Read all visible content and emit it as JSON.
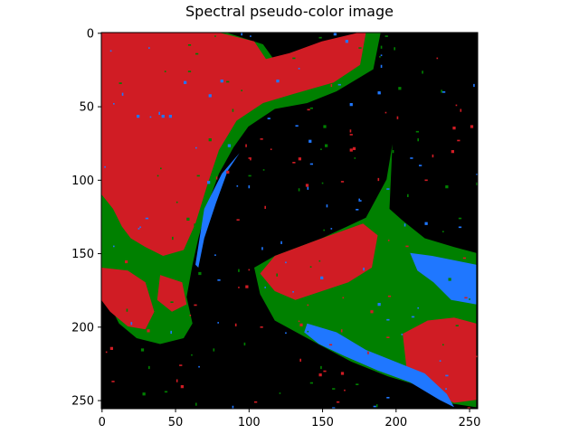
{
  "chart_data": {
    "type": "heatmap",
    "title": "Spectral pseudo-color image",
    "xlabel": "",
    "ylabel": "",
    "xlim": [
      0,
      255
    ],
    "ylim": [
      255,
      0
    ],
    "x_ticks": [
      0,
      50,
      100,
      150,
      200,
      250
    ],
    "y_ticks": [
      0,
      50,
      100,
      150,
      200,
      250
    ],
    "grid": false,
    "legend": "none",
    "image_size": [
      256,
      256
    ],
    "classes": [
      {
        "id": 0,
        "color": "#000000"
      },
      {
        "id": 1,
        "color": "#1f77ff"
      },
      {
        "id": 2,
        "color": "#008000"
      },
      {
        "id": 3,
        "color": "#d01c24"
      }
    ],
    "regions": [
      {
        "class": 2,
        "polygon": [
          [
            0,
            0
          ],
          [
            85,
            0
          ],
          [
            110,
            8
          ],
          [
            120,
            22
          ],
          [
            145,
            10
          ],
          [
            180,
            0
          ],
          [
            190,
            0
          ],
          [
            185,
            25
          ],
          [
            160,
            40
          ],
          [
            140,
            48
          ],
          [
            118,
            52
          ],
          [
            100,
            64
          ],
          [
            90,
            78
          ],
          [
            80,
            96
          ],
          [
            72,
            118
          ],
          [
            66,
            140
          ],
          [
            62,
            158
          ],
          [
            58,
            180
          ],
          [
            62,
            198
          ],
          [
            56,
            208
          ],
          [
            40,
            212
          ],
          [
            24,
            208
          ],
          [
            12,
            198
          ],
          [
            4,
            182
          ],
          [
            0,
            172
          ]
        ]
      },
      {
        "class": 3,
        "polygon": [
          [
            0,
            0
          ],
          [
            80,
            0
          ],
          [
            104,
            6
          ],
          [
            112,
            18
          ],
          [
            128,
            14
          ],
          [
            150,
            6
          ],
          [
            175,
            0
          ],
          [
            180,
            0
          ],
          [
            176,
            22
          ],
          [
            158,
            34
          ],
          [
            130,
            42
          ],
          [
            110,
            48
          ],
          [
            92,
            60
          ],
          [
            80,
            80
          ],
          [
            72,
            104
          ],
          [
            64,
            130
          ],
          [
            56,
            148
          ],
          [
            42,
            152
          ],
          [
            30,
            146
          ],
          [
            20,
            140
          ],
          [
            14,
            132
          ],
          [
            8,
            120
          ],
          [
            0,
            110
          ]
        ]
      },
      {
        "class": 3,
        "polygon": [
          [
            0,
            160
          ],
          [
            18,
            162
          ],
          [
            30,
            170
          ],
          [
            36,
            190
          ],
          [
            30,
            202
          ],
          [
            18,
            200
          ],
          [
            6,
            190
          ],
          [
            0,
            182
          ]
        ]
      },
      {
        "class": 3,
        "polygon": [
          [
            40,
            165
          ],
          [
            55,
            170
          ],
          [
            58,
            185
          ],
          [
            48,
            190
          ],
          [
            38,
            182
          ]
        ]
      },
      {
        "class": 1,
        "polygon": [
          [
            64,
            158
          ],
          [
            70,
            120
          ],
          [
            82,
            96
          ],
          [
            94,
            82
          ],
          [
            86,
            94
          ],
          [
            78,
            116
          ],
          [
            70,
            140
          ],
          [
            66,
            160
          ]
        ]
      },
      {
        "class": 2,
        "polygon": [
          [
            118,
            152
          ],
          [
            150,
            140
          ],
          [
            180,
            126
          ],
          [
            194,
            100
          ],
          [
            198,
            76
          ],
          [
            196,
            120
          ],
          [
            205,
            128
          ],
          [
            220,
            140
          ],
          [
            240,
            146
          ],
          [
            255,
            150
          ],
          [
            255,
            255
          ],
          [
            235,
            252
          ],
          [
            215,
            240
          ],
          [
            195,
            234
          ],
          [
            170,
            224
          ],
          [
            140,
            208
          ],
          [
            118,
            196
          ],
          [
            108,
            178
          ],
          [
            104,
            160
          ]
        ]
      },
      {
        "class": 3,
        "polygon": [
          [
            118,
            152
          ],
          [
            150,
            140
          ],
          [
            178,
            130
          ],
          [
            188,
            138
          ],
          [
            184,
            160
          ],
          [
            168,
            170
          ],
          [
            150,
            176
          ],
          [
            132,
            182
          ],
          [
            118,
            176
          ],
          [
            108,
            164
          ]
        ]
      },
      {
        "class": 3,
        "polygon": [
          [
            205,
            205
          ],
          [
            222,
            196
          ],
          [
            240,
            194
          ],
          [
            255,
            198
          ],
          [
            255,
            250
          ],
          [
            240,
            252
          ],
          [
            222,
            244
          ],
          [
            208,
            232
          ]
        ]
      },
      {
        "class": 1,
        "polygon": [
          [
            210,
            150
          ],
          [
            225,
            152
          ],
          [
            245,
            156
          ],
          [
            255,
            158
          ],
          [
            255,
            185
          ],
          [
            238,
            182
          ],
          [
            226,
            170
          ],
          [
            215,
            162
          ]
        ]
      },
      {
        "class": 1,
        "polygon": [
          [
            140,
            198
          ],
          [
            160,
            204
          ],
          [
            180,
            216
          ],
          [
            200,
            224
          ],
          [
            220,
            232
          ],
          [
            235,
            246
          ],
          [
            240,
            255
          ],
          [
            230,
            250
          ],
          [
            210,
            238
          ],
          [
            188,
            230
          ],
          [
            165,
            220
          ],
          [
            148,
            212
          ],
          [
            138,
            204
          ]
        ]
      }
    ]
  }
}
